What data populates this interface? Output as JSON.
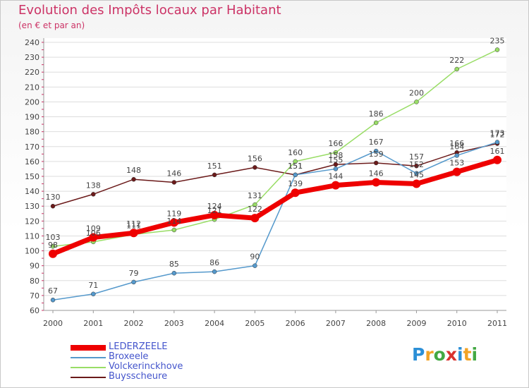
{
  "header": {
    "title": "Evolution des Impôts locaux par Habitant",
    "subtitle": "(en € et par an)"
  },
  "logo": {
    "text": "Proxiti",
    "letters": [
      {
        "ch": "P",
        "color": "#2b8fd6"
      },
      {
        "ch": "r",
        "color": "#f2a325"
      },
      {
        "ch": "o",
        "color": "#43a843"
      },
      {
        "ch": "x",
        "color": "#d9322e"
      },
      {
        "ch": "i",
        "color": "#2b8fd6"
      },
      {
        "ch": "t",
        "color": "#f2a325"
      },
      {
        "ch": "i",
        "color": "#43a843"
      }
    ]
  },
  "chart_data": {
    "type": "line",
    "title": "Evolution des Impôts locaux par Habitant",
    "subtitle": "(en € et par an)",
    "xlabel": "",
    "ylabel": "",
    "x": [
      "2000",
      "2001",
      "2002",
      "2003",
      "2004",
      "2005",
      "2006",
      "2007",
      "2008",
      "2009",
      "2010",
      "2011"
    ],
    "ylim": [
      60,
      240
    ],
    "yticks": [
      60,
      70,
      80,
      90,
      100,
      110,
      120,
      130,
      140,
      150,
      160,
      170,
      180,
      190,
      200,
      210,
      220,
      230,
      240
    ],
    "grid": "horizontal",
    "legend_position": "bottom-left",
    "series": [
      {
        "name": "Buysscheure",
        "color": "#6b1a1a",
        "values": [
          130,
          138,
          148,
          146,
          151,
          156,
          151,
          158,
          159,
          157,
          166,
          172
        ]
      },
      {
        "name": "Volckerinckhove",
        "color": "#99dd66",
        "values": [
          103,
          106,
          111,
          114,
          121,
          131,
          160,
          166,
          186,
          200,
          222,
          235
        ]
      },
      {
        "name": "Broxeele",
        "color": "#5599cc",
        "values": [
          67,
          71,
          79,
          85,
          86,
          90,
          151,
          155,
          167,
          152,
          164,
          173
        ]
      },
      {
        "name": "LEDERZEELE",
        "color": "#ee0000",
        "values": [
          98,
          109,
          112,
          119,
          124,
          122,
          139,
          144,
          146,
          145,
          153,
          161
        ]
      }
    ],
    "legend_order": [
      "LEDERZEELE",
      "Broxeele",
      "Volckerinckhove",
      "Buysscheure"
    ]
  }
}
